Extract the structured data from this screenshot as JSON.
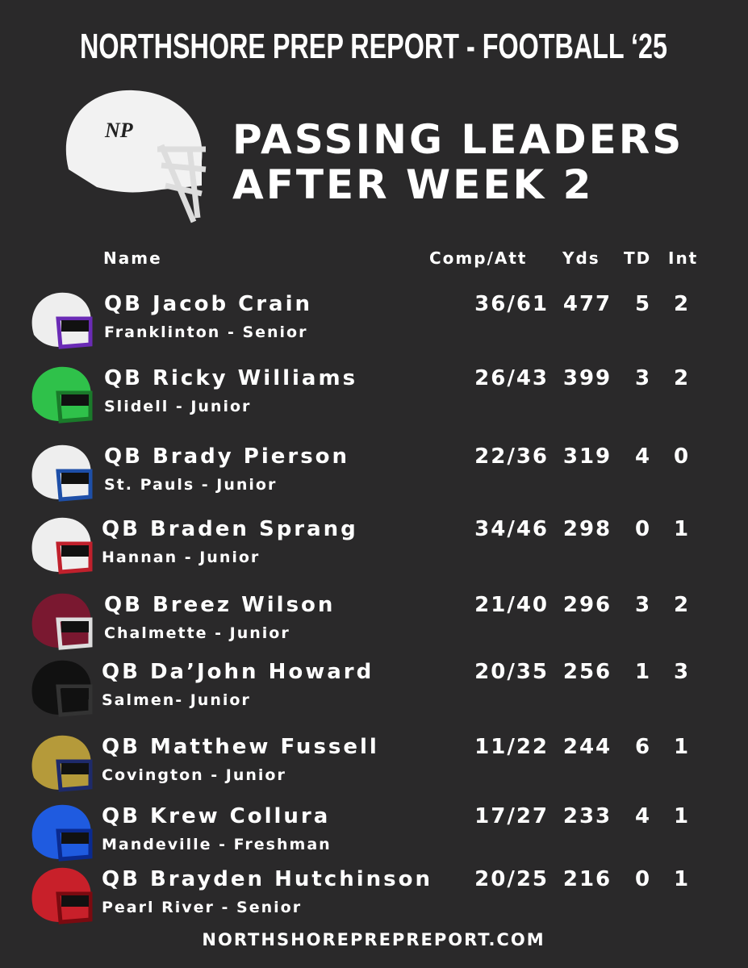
{
  "header": {
    "title": "NORTHSHORE PREP REPORT - FOOTBALL ‘25",
    "subtitle_lines": [
      "PASSING LEADERS",
      "AFTER WEEK 2"
    ]
  },
  "table": {
    "columns": [
      "Name",
      "Comp/Att",
      "Yds",
      "TD",
      "Int"
    ],
    "rows": [
      {
        "name": "QB Jacob Crain",
        "team": "Franklinton - Senior",
        "comp_att": "36/61",
        "yds": 477,
        "td": 5,
        "int": 2
      },
      {
        "name": "QB Ricky Williams",
        "team": "Slidell - Junior",
        "comp_att": "26/43",
        "yds": 399,
        "td": 3,
        "int": 2
      },
      {
        "name": "QB Brady Pierson",
        "team": "St. Pauls - Junior",
        "comp_att": "22/36",
        "yds": 319,
        "td": 4,
        "int": 0
      },
      {
        "name": "QB Braden Sprang",
        "team": "Hannan - Junior",
        "comp_att": "34/46",
        "yds": 298,
        "td": 0,
        "int": 1
      },
      {
        "name": "QB Breez Wilson",
        "team": "Chalmette - Junior",
        "comp_att": "21/40",
        "yds": 296,
        "td": 3,
        "int": 2
      },
      {
        "name": "QB Da’John Howard",
        "team": "Salmen- Junior",
        "comp_att": "20/35",
        "yds": 256,
        "td": 1,
        "int": 3
      },
      {
        "name": "QB Matthew Fussell",
        "team": "Covington - Junior",
        "comp_att": "11/22",
        "yds": 244,
        "td": 6,
        "int": 1
      },
      {
        "name": "QB Krew Collura",
        "team": "Mandeville - Freshman",
        "comp_att": "17/27",
        "yds": 233,
        "td": 4,
        "int": 1
      },
      {
        "name": "QB Brayden Hutchinson",
        "team": "Pearl River - Senior",
        "comp_att": "20/25",
        "yds": 216,
        "td": 0,
        "int": 1
      }
    ]
  },
  "footer": {
    "url": "NORTHSHOREPREPREPORT.COM"
  }
}
